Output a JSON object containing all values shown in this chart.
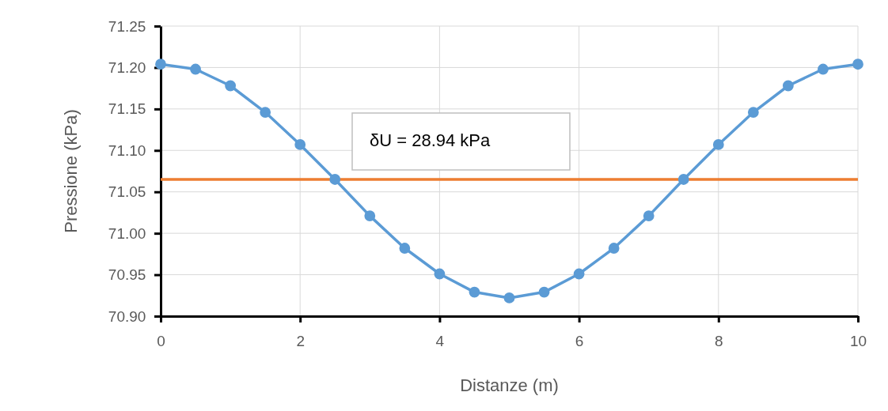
{
  "chart_data": {
    "type": "line",
    "xlabel": "Distanze (m)",
    "ylabel": "Pressione (kPa)",
    "x": [
      0,
      0.5,
      1,
      1.5,
      2,
      2.5,
      3,
      3.5,
      4,
      4.5,
      5,
      5.5,
      6,
      6.5,
      7,
      7.5,
      8,
      8.5,
      9,
      9.5,
      10
    ],
    "series": [
      {
        "color": "#5b9bd5",
        "values": [
          71.204,
          71.198,
          71.178,
          71.146,
          71.107,
          71.065,
          71.021,
          70.982,
          70.951,
          70.929,
          70.922,
          70.929,
          70.951,
          70.982,
          71.021,
          71.065,
          71.107,
          71.146,
          71.178,
          71.198,
          71.204
        ]
      }
    ],
    "xlim": [
      0,
      10
    ],
    "xticks": [
      0,
      2,
      4,
      6,
      8,
      10
    ],
    "ylim": [
      70.9,
      71.25
    ],
    "yticks": [
      {
        "value": 70.9,
        "label": "70.90"
      },
      {
        "value": 70.95,
        "label": "70.95"
      },
      {
        "value": 71.0,
        "label": "71.00"
      },
      {
        "value": 71.05,
        "label": "71.05"
      },
      {
        "value": 71.1,
        "label": "71.10"
      },
      {
        "value": 71.15,
        "label": "71.15"
      },
      {
        "value": 71.2,
        "label": "71.20"
      },
      {
        "value": 71.25,
        "label": "71.25"
      }
    ],
    "grid": true,
    "marker": "circle",
    "line_style": "solid",
    "ref_lines": [
      {
        "axis": "y",
        "value": 71.065,
        "color": "#ed7d31"
      }
    ],
    "annotations": [
      "δU = 28.94 kPa"
    ]
  }
}
